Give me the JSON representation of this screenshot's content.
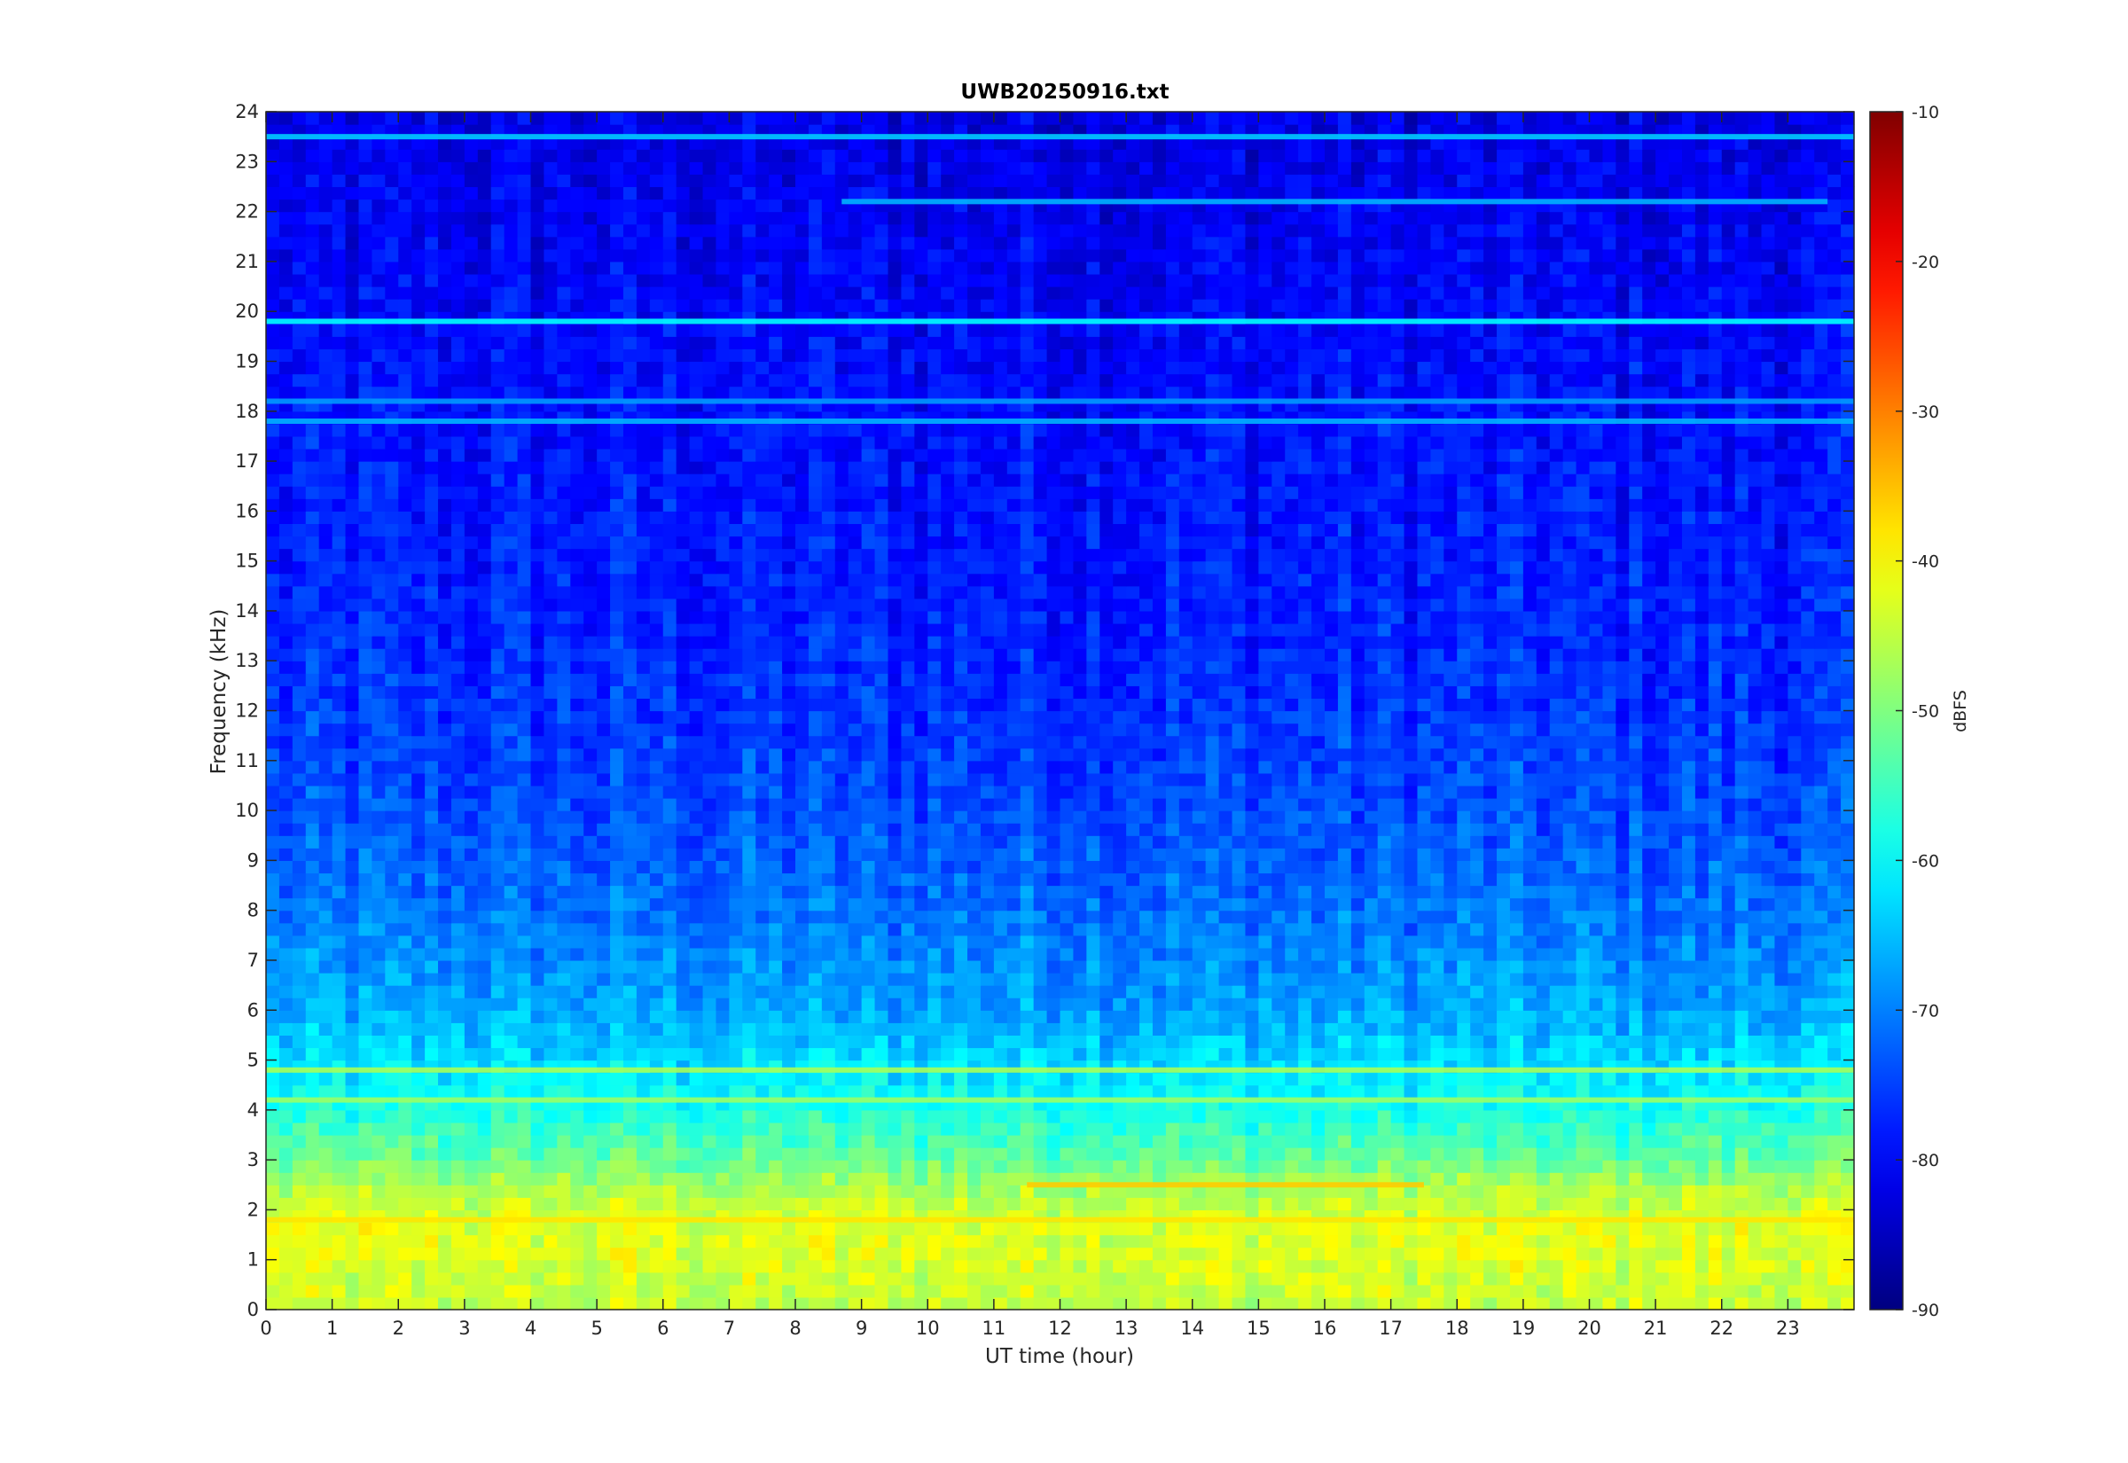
{
  "chart_data": {
    "type": "heatmap",
    "title": "UWB20250916.txt",
    "xlabel": "UT time (hour)",
    "ylabel": "Frequency (kHz)",
    "xlim": [
      0,
      24
    ],
    "ylim": [
      0,
      24
    ],
    "x_ticks": [
      0,
      1,
      2,
      3,
      4,
      5,
      6,
      7,
      8,
      9,
      10,
      11,
      12,
      13,
      14,
      15,
      16,
      17,
      18,
      19,
      20,
      21,
      22,
      23
    ],
    "y_ticks": [
      0,
      1,
      2,
      3,
      4,
      5,
      6,
      7,
      8,
      9,
      10,
      11,
      12,
      13,
      14,
      15,
      16,
      17,
      18,
      19,
      20,
      21,
      22,
      23,
      24
    ],
    "colorbar": {
      "label": "dBFS",
      "colormap": "jet",
      "range": [
        -90,
        -10
      ],
      "ticks": [
        -10,
        -20,
        -30,
        -40,
        -50,
        -60,
        -70,
        -80,
        -90
      ]
    },
    "grid": false,
    "frequency_profile_dbfs": [
      {
        "f": 0.0,
        "db": -45
      },
      {
        "f": 0.5,
        "db": -44
      },
      {
        "f": 1.0,
        "db": -43
      },
      {
        "f": 1.5,
        "db": -42
      },
      {
        "f": 2.0,
        "db": -44
      },
      {
        "f": 2.5,
        "db": -47
      },
      {
        "f": 3.0,
        "db": -52
      },
      {
        "f": 3.5,
        "db": -55
      },
      {
        "f": 4.0,
        "db": -58
      },
      {
        "f": 5.0,
        "db": -63
      },
      {
        "f": 6.0,
        "db": -67
      },
      {
        "f": 7.0,
        "db": -69
      },
      {
        "f": 8.0,
        "db": -71
      },
      {
        "f": 10.0,
        "db": -74
      },
      {
        "f": 12.0,
        "db": -76
      },
      {
        "f": 15.0,
        "db": -78
      },
      {
        "f": 18.0,
        "db": -79
      },
      {
        "f": 20.0,
        "db": -80
      },
      {
        "f": 22.0,
        "db": -81
      },
      {
        "f": 24.0,
        "db": -82
      }
    ],
    "tonal_lines": [
      {
        "f": 19.8,
        "db": -60,
        "t_start": 0,
        "t_end": 24
      },
      {
        "f": 18.2,
        "db": -68,
        "t_start": 0,
        "t_end": 24
      },
      {
        "f": 17.8,
        "db": -66,
        "t_start": 0,
        "t_end": 24
      },
      {
        "f": 23.5,
        "db": -64,
        "t_start": 0,
        "t_end": 24
      },
      {
        "f": 22.2,
        "db": -66,
        "t_start": 8.7,
        "t_end": 23.6
      },
      {
        "f": 4.8,
        "db": -47,
        "t_start": 0,
        "t_end": 24
      },
      {
        "f": 4.2,
        "db": -48,
        "t_start": 0,
        "t_end": 24
      },
      {
        "f": 2.5,
        "db": -36,
        "t_start": 11.5,
        "t_end": 17.5
      },
      {
        "f": 1.8,
        "db": -38,
        "t_start": 0,
        "t_end": 24
      }
    ]
  }
}
